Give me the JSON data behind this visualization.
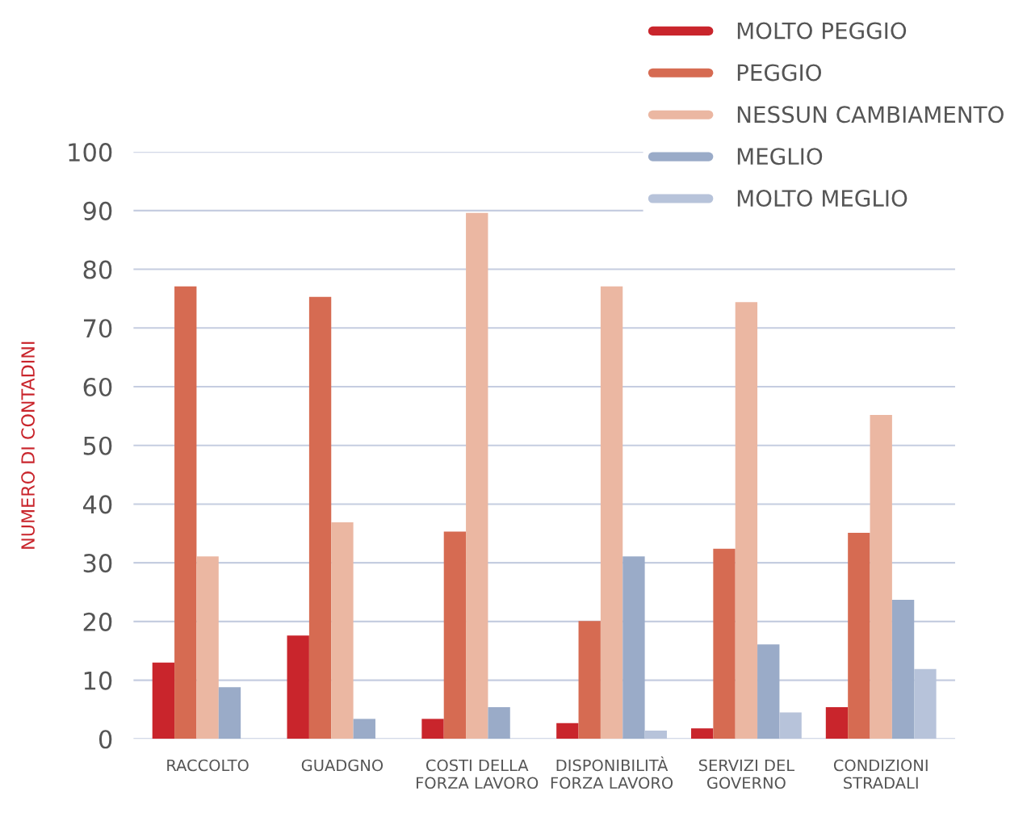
{
  "chart_data": {
    "type": "bar",
    "ylabel": "NUMERO DI CONTADINI",
    "categories": [
      "RACCOLTO",
      "GUADGNO",
      "COSTI DELLA\nFORZA LAVORO",
      "DISPONIBILITÀ\nFORZA LAVORO",
      "SERVIZI DEL\nGOVERNO",
      "CONDIZIONI\nSTRADALI"
    ],
    "series": [
      {
        "name": "MOLTO PEGGIO",
        "color": "#c9252c",
        "values": [
          13.0,
          17.6,
          3.4,
          2.7,
          1.8,
          5.4
        ]
      },
      {
        "name": "PEGGIO",
        "color": "#d66b52",
        "values": [
          77.1,
          75.3,
          35.3,
          20.1,
          32.4,
          35.1
        ]
      },
      {
        "name": "NESSUN CAMBIAMENTO",
        "color": "#ebb7a2",
        "values": [
          31.1,
          36.9,
          89.6,
          77.1,
          74.4,
          55.2
        ]
      },
      {
        "name": "MEGLIO",
        "color": "#9aabc8",
        "values": [
          8.8,
          3.4,
          5.4,
          31.1,
          16.1,
          23.7
        ]
      },
      {
        "name": "MOLTO MEGLIO",
        "color": "#b7c3da",
        "values": [
          0,
          0,
          0,
          1.4,
          4.5,
          11.9
        ]
      }
    ],
    "ylim": [
      0,
      100
    ],
    "yticks": [
      0,
      10,
      20,
      30,
      40,
      50,
      60,
      70,
      80,
      90,
      100
    ],
    "grid": "y",
    "legend": "top right"
  }
}
